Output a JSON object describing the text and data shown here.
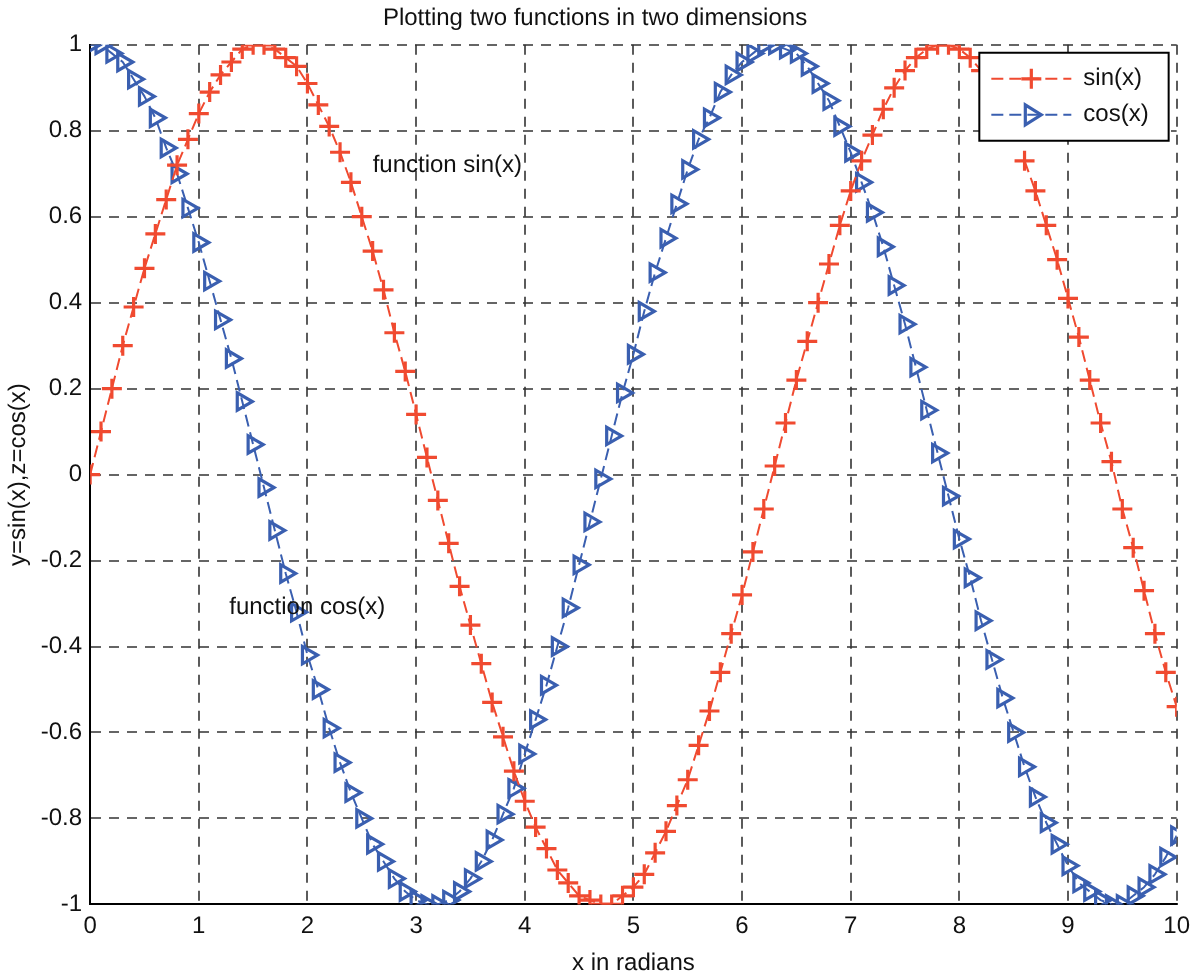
{
  "chart_data": {
    "type": "line",
    "title": "Plotting two functions in two dimensions",
    "xlabel": "x in radians",
    "ylabel": "y=sin(x),z=cos(x)",
    "x": [
      0,
      0.1,
      0.2,
      0.3,
      0.4,
      0.5,
      0.6,
      0.7,
      0.8,
      0.9,
      1,
      1.1,
      1.2,
      1.3,
      1.4,
      1.5,
      1.6,
      1.7,
      1.8,
      1.9,
      2,
      2.1,
      2.2,
      2.3,
      2.4,
      2.5,
      2.6,
      2.7,
      2.8,
      2.9,
      3,
      3.1,
      3.2,
      3.3,
      3.4,
      3.5,
      3.6,
      3.7,
      3.8,
      3.9,
      4,
      4.1,
      4.2,
      4.3,
      4.4,
      4.5,
      4.6,
      4.7,
      4.8,
      4.9,
      5,
      5.1,
      5.2,
      5.3,
      5.4,
      5.5,
      5.6,
      5.7,
      5.8,
      5.9,
      6,
      6.1,
      6.2,
      6.3,
      6.4,
      6.5,
      6.6,
      6.7,
      6.8,
      6.9,
      7,
      7.1,
      7.2,
      7.3,
      7.4,
      7.5,
      7.6,
      7.7,
      7.8,
      7.9,
      8,
      8.1,
      8.2,
      8.3,
      8.4,
      8.5,
      8.6,
      8.7,
      8.8,
      8.9,
      9,
      9.1,
      9.2,
      9.3,
      9.4,
      9.5,
      9.6,
      9.7,
      9.8,
      9.9,
      10
    ],
    "series": [
      {
        "name": "sin(x)",
        "color": "#f04a30",
        "marker": "cross",
        "line_style": "dashed",
        "values": [
          0,
          0.1,
          0.2,
          0.3,
          0.39,
          0.48,
          0.56,
          0.64,
          0.72,
          0.78,
          0.84,
          0.89,
          0.93,
          0.96,
          0.99,
          1.0,
          1.0,
          0.99,
          0.97,
          0.95,
          0.91,
          0.86,
          0.81,
          0.75,
          0.68,
          0.6,
          0.52,
          0.43,
          0.33,
          0.24,
          0.14,
          0.04,
          -0.06,
          -0.16,
          -0.26,
          -0.35,
          -0.44,
          -0.53,
          -0.61,
          -0.69,
          -0.76,
          -0.82,
          -0.87,
          -0.92,
          -0.95,
          -0.98,
          -0.99,
          -1.0,
          -1.0,
          -0.98,
          -0.96,
          -0.93,
          -0.88,
          -0.83,
          -0.77,
          -0.71,
          -0.63,
          -0.55,
          -0.46,
          -0.37,
          -0.28,
          -0.18,
          -0.08,
          0.02,
          0.12,
          0.22,
          0.31,
          0.4,
          0.49,
          0.58,
          0.66,
          0.73,
          0.79,
          0.85,
          0.9,
          0.94,
          0.97,
          0.99,
          1.0,
          1.0,
          0.99,
          0.97,
          0.94,
          null,
          null,
          null,
          0.73,
          0.66,
          0.58,
          0.5,
          0.41,
          0.32,
          0.22,
          0.12,
          0.03,
          -0.08,
          -0.17,
          -0.27,
          -0.37,
          -0.46,
          -0.54
        ]
      },
      {
        "name": "cos(x)",
        "color": "#3a5fb0",
        "marker": "triangle",
        "line_style": "dashed",
        "values": [
          1.0,
          1.0,
          0.98,
          0.96,
          0.92,
          0.88,
          0.83,
          0.76,
          0.7,
          0.62,
          0.54,
          0.45,
          0.36,
          0.27,
          0.17,
          0.07,
          -0.03,
          -0.13,
          -0.23,
          -0.32,
          -0.42,
          -0.5,
          -0.59,
          -0.67,
          -0.74,
          -0.8,
          -0.86,
          -0.9,
          -0.94,
          -0.97,
          -0.99,
          -1.0,
          -1.0,
          -0.99,
          -0.97,
          -0.94,
          -0.9,
          -0.85,
          -0.79,
          -0.73,
          -0.65,
          -0.57,
          -0.49,
          -0.4,
          -0.31,
          -0.21,
          -0.11,
          -0.01,
          0.09,
          0.19,
          0.28,
          0.38,
          0.47,
          0.55,
          0.63,
          0.71,
          0.78,
          0.83,
          0.89,
          0.93,
          0.96,
          0.98,
          1.0,
          1.0,
          0.99,
          0.98,
          0.95,
          0.91,
          0.87,
          0.81,
          0.75,
          0.68,
          0.61,
          0.53,
          0.44,
          0.35,
          0.25,
          0.15,
          0.05,
          -0.05,
          -0.15,
          -0.24,
          -0.34,
          -0.43,
          -0.52,
          -0.6,
          -0.68,
          -0.75,
          -0.81,
          -0.86,
          -0.91,
          -0.95,
          -0.97,
          -0.99,
          -1.0,
          -1.0,
          -0.98,
          -0.96,
          -0.93,
          -0.89,
          -0.84
        ]
      }
    ],
    "xlim": [
      0,
      10
    ],
    "xticks": [
      0,
      1,
      2,
      3,
      4,
      5,
      6,
      7,
      8,
      9,
      10
    ],
    "ylim": [
      -1,
      1
    ],
    "yticks": [
      -1,
      -0.8,
      -0.6,
      -0.4,
      -0.2,
      0,
      0.2,
      0.4,
      0.6,
      0.8,
      1
    ],
    "grid": true,
    "legend": "top right",
    "annotations": [
      "function sin(x)",
      "function cos(x)"
    ]
  }
}
